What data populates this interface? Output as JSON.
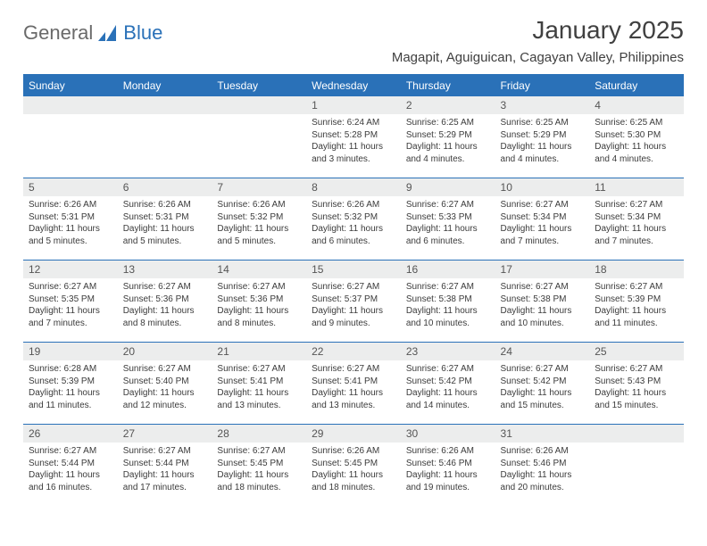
{
  "brand": {
    "part1": "General",
    "part2": "Blue"
  },
  "title": "January 2025",
  "location": "Magapit, Aguiguican, Cagayan Valley, Philippines",
  "colors": {
    "header_bg": "#2a71b8",
    "header_text": "#ffffff",
    "daynum_bg": "#eceded",
    "daynum_text": "#555555",
    "border": "#2a71b8",
    "body_text": "#3b3b3b",
    "logo_gray": "#6a6a6a",
    "logo_blue": "#2a71b8",
    "background": "#ffffff"
  },
  "typography": {
    "title_fontsize": 28,
    "location_fontsize": 15,
    "dayheader_fontsize": 12,
    "daynum_fontsize": 12,
    "body_fontsize": 10
  },
  "day_headers": [
    "Sunday",
    "Monday",
    "Tuesday",
    "Wednesday",
    "Thursday",
    "Friday",
    "Saturday"
  ],
  "weeks": [
    [
      null,
      null,
      null,
      {
        "n": "1",
        "sunrise": "Sunrise: 6:24 AM",
        "sunset": "Sunset: 5:28 PM",
        "daylight": "Daylight: 11 hours and 3 minutes."
      },
      {
        "n": "2",
        "sunrise": "Sunrise: 6:25 AM",
        "sunset": "Sunset: 5:29 PM",
        "daylight": "Daylight: 11 hours and 4 minutes."
      },
      {
        "n": "3",
        "sunrise": "Sunrise: 6:25 AM",
        "sunset": "Sunset: 5:29 PM",
        "daylight": "Daylight: 11 hours and 4 minutes."
      },
      {
        "n": "4",
        "sunrise": "Sunrise: 6:25 AM",
        "sunset": "Sunset: 5:30 PM",
        "daylight": "Daylight: 11 hours and 4 minutes."
      }
    ],
    [
      {
        "n": "5",
        "sunrise": "Sunrise: 6:26 AM",
        "sunset": "Sunset: 5:31 PM",
        "daylight": "Daylight: 11 hours and 5 minutes."
      },
      {
        "n": "6",
        "sunrise": "Sunrise: 6:26 AM",
        "sunset": "Sunset: 5:31 PM",
        "daylight": "Daylight: 11 hours and 5 minutes."
      },
      {
        "n": "7",
        "sunrise": "Sunrise: 6:26 AM",
        "sunset": "Sunset: 5:32 PM",
        "daylight": "Daylight: 11 hours and 5 minutes."
      },
      {
        "n": "8",
        "sunrise": "Sunrise: 6:26 AM",
        "sunset": "Sunset: 5:32 PM",
        "daylight": "Daylight: 11 hours and 6 minutes."
      },
      {
        "n": "9",
        "sunrise": "Sunrise: 6:27 AM",
        "sunset": "Sunset: 5:33 PM",
        "daylight": "Daylight: 11 hours and 6 minutes."
      },
      {
        "n": "10",
        "sunrise": "Sunrise: 6:27 AM",
        "sunset": "Sunset: 5:34 PM",
        "daylight": "Daylight: 11 hours and 7 minutes."
      },
      {
        "n": "11",
        "sunrise": "Sunrise: 6:27 AM",
        "sunset": "Sunset: 5:34 PM",
        "daylight": "Daylight: 11 hours and 7 minutes."
      }
    ],
    [
      {
        "n": "12",
        "sunrise": "Sunrise: 6:27 AM",
        "sunset": "Sunset: 5:35 PM",
        "daylight": "Daylight: 11 hours and 7 minutes."
      },
      {
        "n": "13",
        "sunrise": "Sunrise: 6:27 AM",
        "sunset": "Sunset: 5:36 PM",
        "daylight": "Daylight: 11 hours and 8 minutes."
      },
      {
        "n": "14",
        "sunrise": "Sunrise: 6:27 AM",
        "sunset": "Sunset: 5:36 PM",
        "daylight": "Daylight: 11 hours and 8 minutes."
      },
      {
        "n": "15",
        "sunrise": "Sunrise: 6:27 AM",
        "sunset": "Sunset: 5:37 PM",
        "daylight": "Daylight: 11 hours and 9 minutes."
      },
      {
        "n": "16",
        "sunrise": "Sunrise: 6:27 AM",
        "sunset": "Sunset: 5:38 PM",
        "daylight": "Daylight: 11 hours and 10 minutes."
      },
      {
        "n": "17",
        "sunrise": "Sunrise: 6:27 AM",
        "sunset": "Sunset: 5:38 PM",
        "daylight": "Daylight: 11 hours and 10 minutes."
      },
      {
        "n": "18",
        "sunrise": "Sunrise: 6:27 AM",
        "sunset": "Sunset: 5:39 PM",
        "daylight": "Daylight: 11 hours and 11 minutes."
      }
    ],
    [
      {
        "n": "19",
        "sunrise": "Sunrise: 6:28 AM",
        "sunset": "Sunset: 5:39 PM",
        "daylight": "Daylight: 11 hours and 11 minutes."
      },
      {
        "n": "20",
        "sunrise": "Sunrise: 6:27 AM",
        "sunset": "Sunset: 5:40 PM",
        "daylight": "Daylight: 11 hours and 12 minutes."
      },
      {
        "n": "21",
        "sunrise": "Sunrise: 6:27 AM",
        "sunset": "Sunset: 5:41 PM",
        "daylight": "Daylight: 11 hours and 13 minutes."
      },
      {
        "n": "22",
        "sunrise": "Sunrise: 6:27 AM",
        "sunset": "Sunset: 5:41 PM",
        "daylight": "Daylight: 11 hours and 13 minutes."
      },
      {
        "n": "23",
        "sunrise": "Sunrise: 6:27 AM",
        "sunset": "Sunset: 5:42 PM",
        "daylight": "Daylight: 11 hours and 14 minutes."
      },
      {
        "n": "24",
        "sunrise": "Sunrise: 6:27 AM",
        "sunset": "Sunset: 5:42 PM",
        "daylight": "Daylight: 11 hours and 15 minutes."
      },
      {
        "n": "25",
        "sunrise": "Sunrise: 6:27 AM",
        "sunset": "Sunset: 5:43 PM",
        "daylight": "Daylight: 11 hours and 15 minutes."
      }
    ],
    [
      {
        "n": "26",
        "sunrise": "Sunrise: 6:27 AM",
        "sunset": "Sunset: 5:44 PM",
        "daylight": "Daylight: 11 hours and 16 minutes."
      },
      {
        "n": "27",
        "sunrise": "Sunrise: 6:27 AM",
        "sunset": "Sunset: 5:44 PM",
        "daylight": "Daylight: 11 hours and 17 minutes."
      },
      {
        "n": "28",
        "sunrise": "Sunrise: 6:27 AM",
        "sunset": "Sunset: 5:45 PM",
        "daylight": "Daylight: 11 hours and 18 minutes."
      },
      {
        "n": "29",
        "sunrise": "Sunrise: 6:26 AM",
        "sunset": "Sunset: 5:45 PM",
        "daylight": "Daylight: 11 hours and 18 minutes."
      },
      {
        "n": "30",
        "sunrise": "Sunrise: 6:26 AM",
        "sunset": "Sunset: 5:46 PM",
        "daylight": "Daylight: 11 hours and 19 minutes."
      },
      {
        "n": "31",
        "sunrise": "Sunrise: 6:26 AM",
        "sunset": "Sunset: 5:46 PM",
        "daylight": "Daylight: 11 hours and 20 minutes."
      },
      null
    ]
  ]
}
